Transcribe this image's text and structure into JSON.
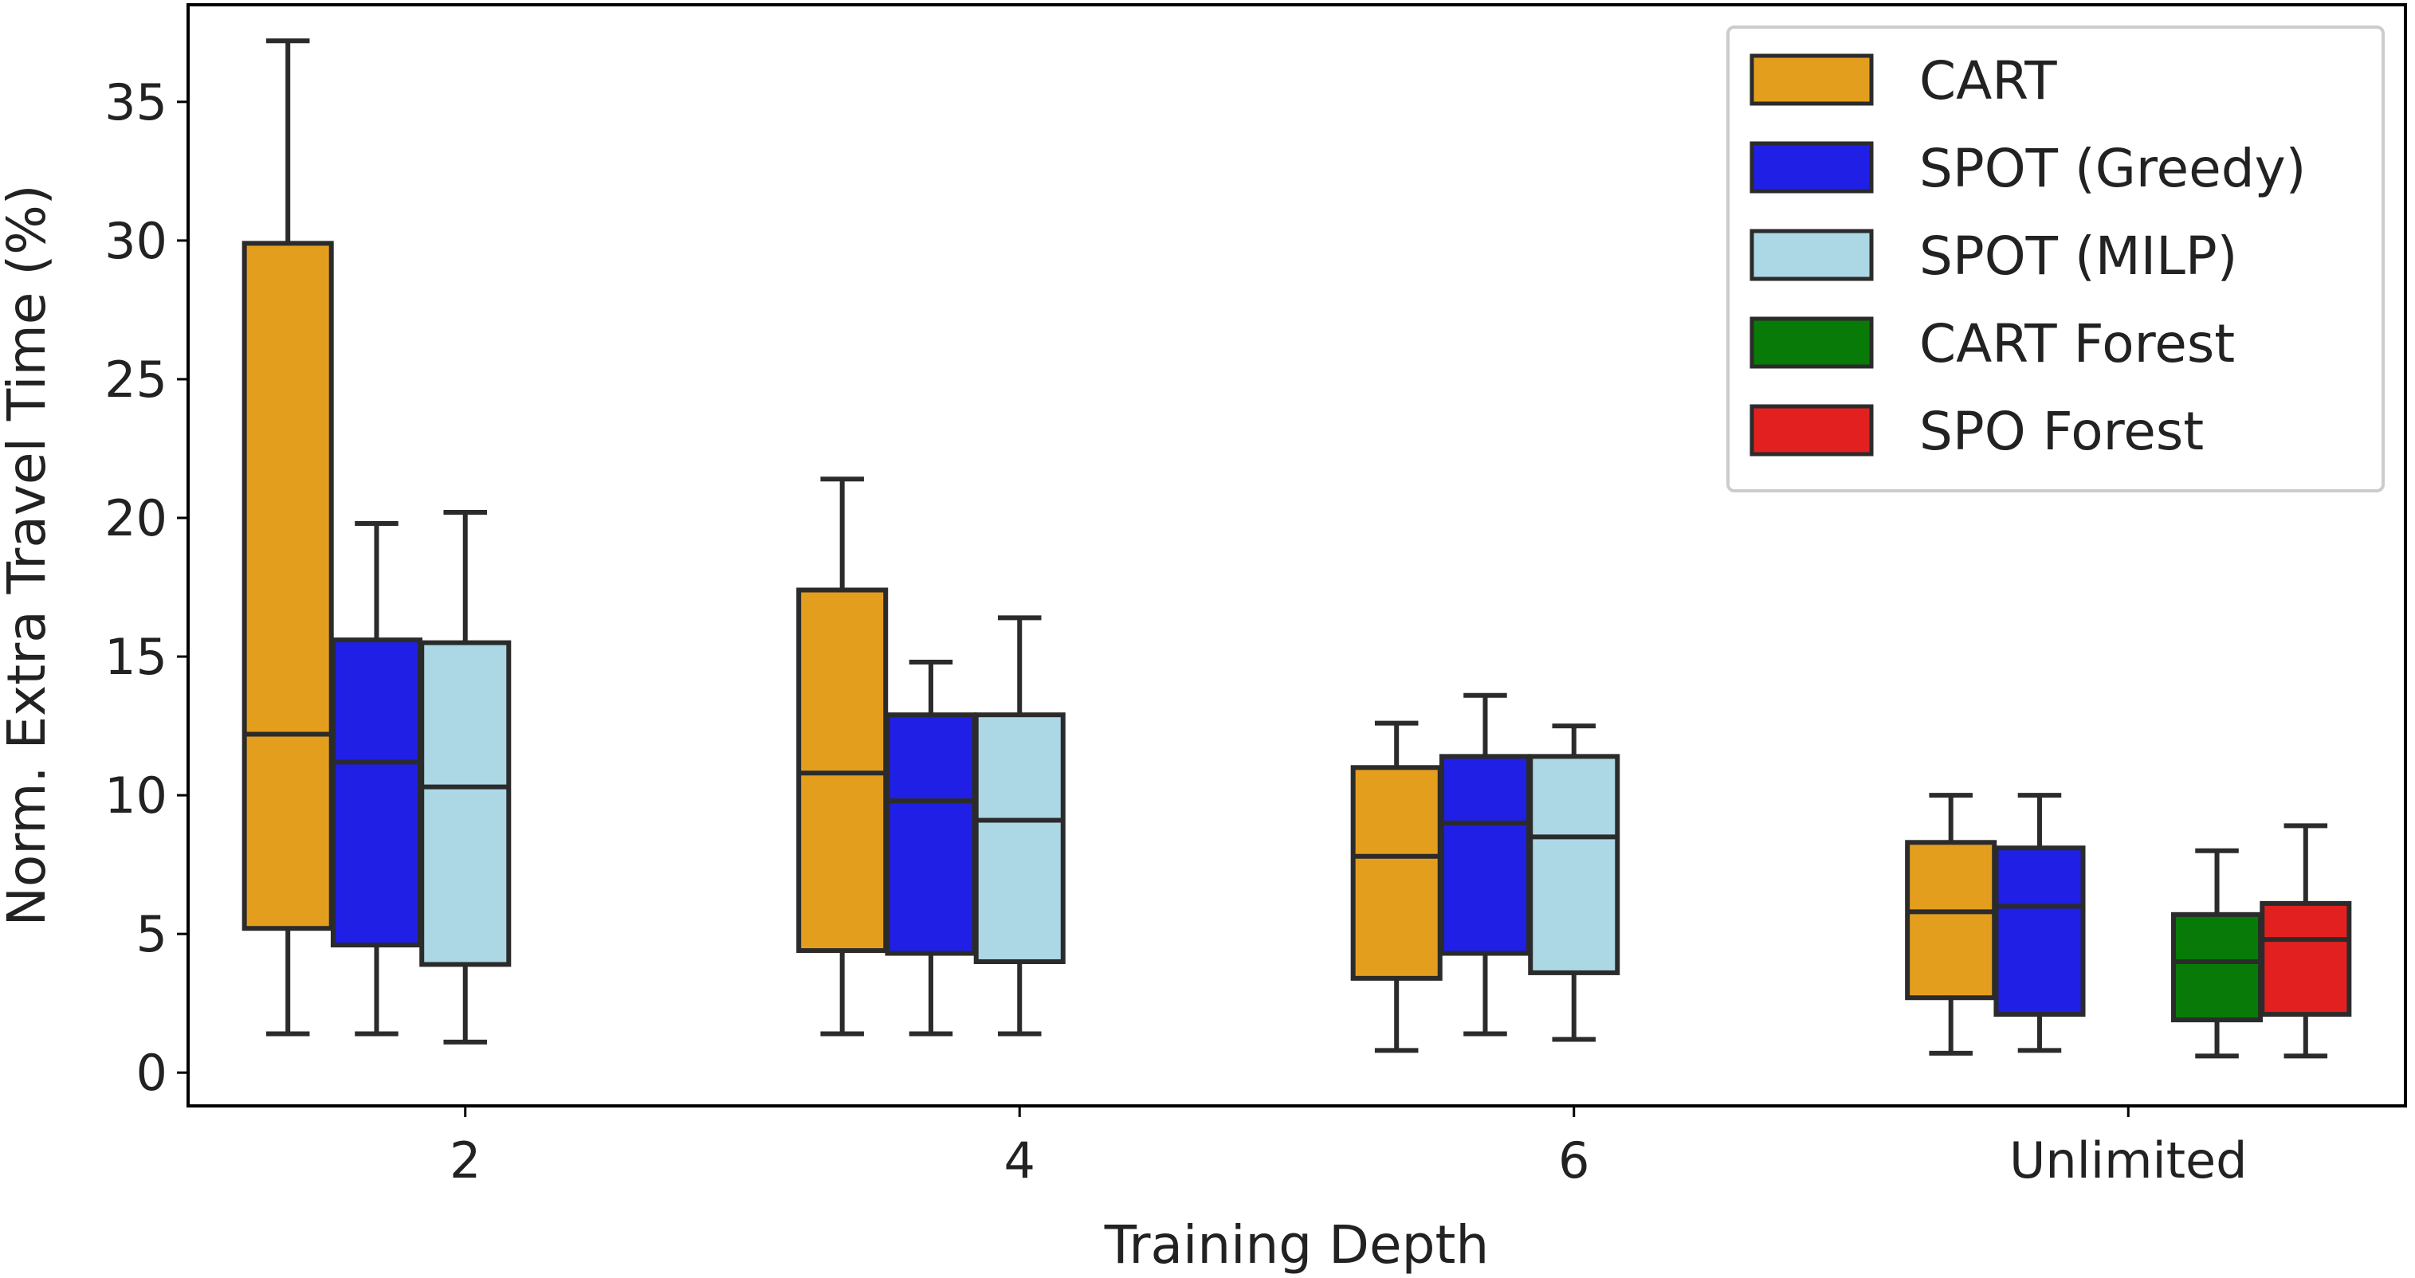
{
  "chart_data": {
    "type": "box",
    "title": "",
    "xlabel": "Training Depth",
    "ylabel": "Norm. Extra Travel Time (%)",
    "categories": [
      "2",
      "4",
      "6",
      "Unlimited"
    ],
    "yticks": [
      "0",
      "5",
      "10",
      "15",
      "20",
      "25",
      "30",
      "35"
    ],
    "ylim": [
      -1.2,
      38.5
    ],
    "grid": false,
    "legend": "top-right",
    "series": [
      {
        "name": "CART",
        "color": "#e49e1e",
        "boxes": [
          {
            "category": "2",
            "min": 1.4,
            "q1": 5.2,
            "median": 12.2,
            "q3": 29.9,
            "max": 37.2
          },
          {
            "category": "4",
            "min": 1.4,
            "q1": 4.4,
            "median": 10.8,
            "q3": 17.4,
            "max": 21.4
          },
          {
            "category": "6",
            "min": 0.8,
            "q1": 3.4,
            "median": 7.8,
            "q3": 11.0,
            "max": 12.6
          },
          {
            "category": "Unlimited",
            "min": 0.7,
            "q1": 2.7,
            "median": 5.8,
            "q3": 8.3,
            "max": 10.0
          }
        ]
      },
      {
        "name": "SPOT (Greedy)",
        "color": "#1f1fe6",
        "boxes": [
          {
            "category": "2",
            "min": 1.4,
            "q1": 4.6,
            "median": 11.2,
            "q3": 15.6,
            "max": 19.8
          },
          {
            "category": "4",
            "min": 1.4,
            "q1": 4.3,
            "median": 9.8,
            "q3": 12.9,
            "max": 14.8
          },
          {
            "category": "6",
            "min": 1.4,
            "q1": 4.3,
            "median": 9.0,
            "q3": 11.4,
            "max": 13.6
          },
          {
            "category": "Unlimited",
            "min": 0.8,
            "q1": 2.1,
            "median": 6.0,
            "q3": 8.1,
            "max": 10.0
          }
        ]
      },
      {
        "name": "SPOT (MILP)",
        "color": "#acd8e6",
        "boxes": [
          {
            "category": "2",
            "min": 1.1,
            "q1": 3.9,
            "median": 10.3,
            "q3": 15.5,
            "max": 20.2
          },
          {
            "category": "4",
            "min": 1.4,
            "q1": 4.0,
            "median": 9.1,
            "q3": 12.9,
            "max": 16.4
          },
          {
            "category": "6",
            "min": 1.2,
            "q1": 3.6,
            "median": 8.5,
            "q3": 11.4,
            "max": 12.5
          }
        ]
      },
      {
        "name": "CART Forest",
        "color": "#087a08",
        "boxes": [
          {
            "category": "Unlimited",
            "min": 0.6,
            "q1": 1.9,
            "median": 4.0,
            "q3": 5.7,
            "max": 8.0
          }
        ]
      },
      {
        "name": "SPO Forest",
        "color": "#e32020",
        "boxes": [
          {
            "category": "Unlimited",
            "min": 0.6,
            "q1": 2.1,
            "median": 4.8,
            "q3": 6.1,
            "max": 8.9
          }
        ]
      }
    ]
  }
}
